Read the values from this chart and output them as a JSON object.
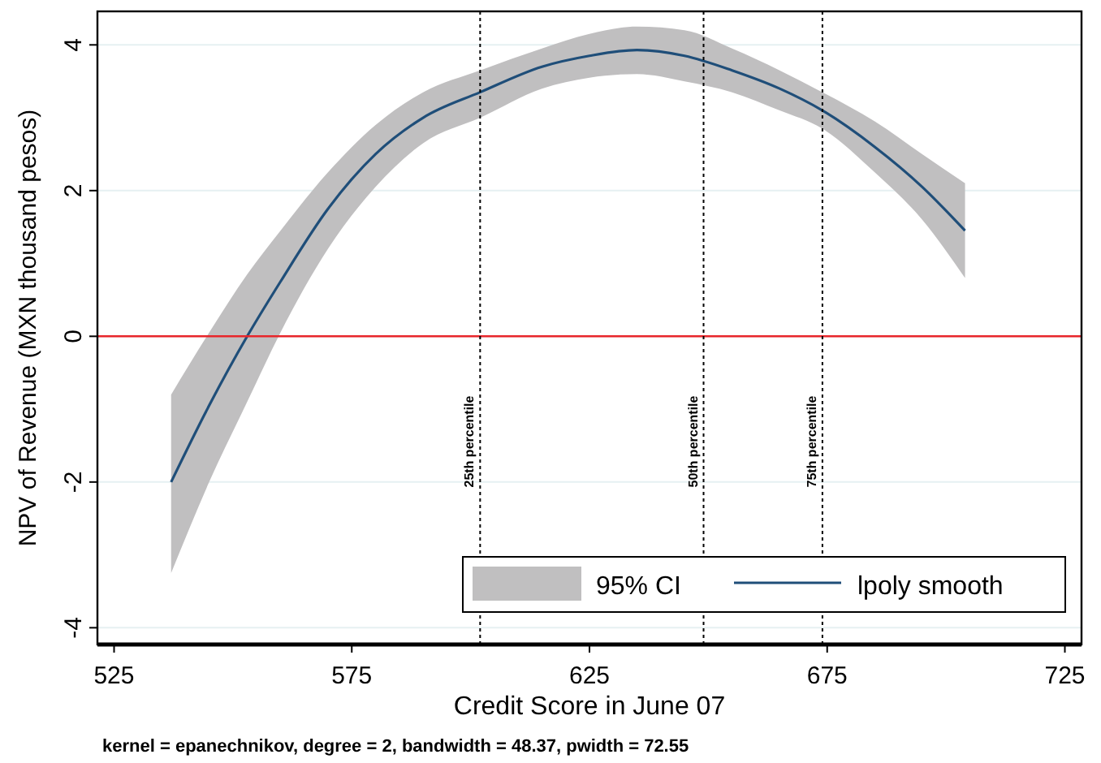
{
  "chart_data": {
    "type": "line",
    "xlabel": "Credit Score in June 07",
    "ylabel": "NPV of Revenue (MXN thousand pesos)",
    "x": [
      537,
      545,
      553,
      560,
      570,
      580,
      590,
      602,
      615,
      625,
      635,
      645,
      655,
      665,
      674,
      685,
      695,
      704
    ],
    "series": [
      {
        "name": "lpoly smooth",
        "color": "#1f4e79",
        "values": [
          -2.0,
          -0.95,
          0,
          0.75,
          1.75,
          2.5,
          3.0,
          3.35,
          3.7,
          3.85,
          3.93,
          3.85,
          3.65,
          3.4,
          3.1,
          2.6,
          2.05,
          1.45
        ],
        "lower": [
          -3.25,
          -2.0,
          -0.9,
          0.05,
          1.2,
          2.05,
          2.65,
          3.0,
          3.4,
          3.55,
          3.6,
          3.5,
          3.35,
          3.1,
          2.85,
          2.25,
          1.6,
          0.8
        ],
        "upper": [
          -0.8,
          0.05,
          0.85,
          1.45,
          2.25,
          2.9,
          3.35,
          3.65,
          3.95,
          4.15,
          4.25,
          4.2,
          3.95,
          3.65,
          3.35,
          2.95,
          2.5,
          2.1
        ]
      }
    ],
    "xlim": [
      521.5,
      728.5
    ],
    "ylim": [
      -4.23,
      4.46
    ],
    "xticks": [
      525,
      575,
      625,
      675,
      725
    ],
    "yticks": [
      -4,
      -2,
      0,
      2,
      4
    ],
    "grid": "y",
    "legend": "bottom right",
    "ref_lines": [
      {
        "axis": "y",
        "value": 0,
        "color": "#e8262b",
        "line_style": "solid"
      },
      {
        "axis": "x",
        "value": 602,
        "label": "25th percentile",
        "color": "#000000",
        "line_style": "dotted"
      },
      {
        "axis": "x",
        "value": 649,
        "label": "50th percentile",
        "color": "#000000",
        "line_style": "dotted"
      },
      {
        "axis": "x",
        "value": 674,
        "label": "75th percentile",
        "color": "#000000",
        "line_style": "dotted"
      }
    ],
    "annotations": [
      "95% CI",
      "kernel = epanechnikov, degree = 2, bandwidth = 48.37, pwidth = 72.55"
    ]
  }
}
